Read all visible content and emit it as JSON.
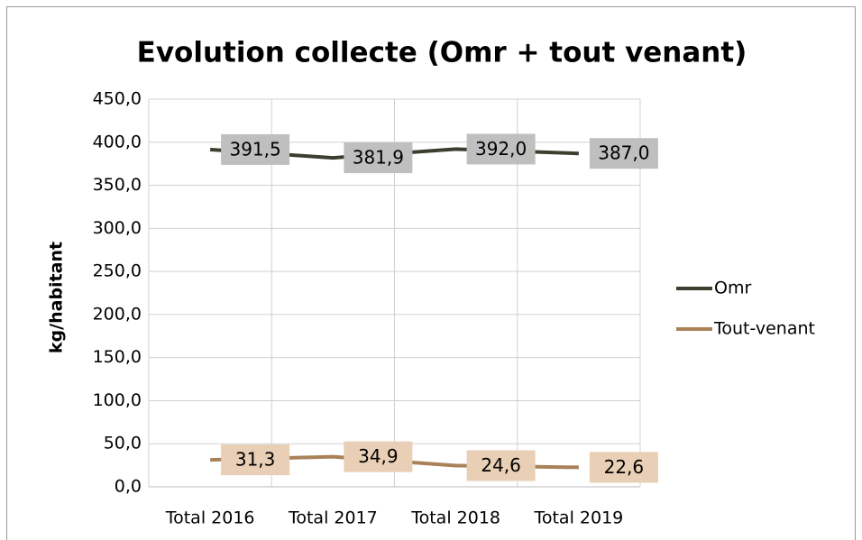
{
  "chart_data": {
    "type": "line",
    "title": "Evolution collecte (Omr + tout venant)",
    "y_label": "kg/habitant",
    "categories": [
      "Total 2016",
      "Total 2017",
      "Total 2018",
      "Total 2019"
    ],
    "series": [
      {
        "name": "Omr",
        "color": "#3b3f2f",
        "label_color": "#bfbfbf",
        "values": [
          391.5,
          381.9,
          392.0,
          387.0
        ],
        "value_labels": [
          "391,5",
          "381,9",
          "392,0",
          "387,0"
        ]
      },
      {
        "name": "Tout-venant",
        "color": "#a98259",
        "label_color": "#e8cfb5",
        "values": [
          31.3,
          34.9,
          24.6,
          22.6
        ],
        "value_labels": [
          "31,3",
          "34,9",
          "24,6",
          "22,6"
        ]
      }
    ],
    "ylim": [
      0,
      450
    ],
    "yticks": [
      {
        "value": 0,
        "label": "0,0"
      },
      {
        "value": 50,
        "label": "50,0"
      },
      {
        "value": 100,
        "label": "100,0"
      },
      {
        "value": 150,
        "label": "150,0"
      },
      {
        "value": 200,
        "label": "200,0"
      },
      {
        "value": 250,
        "label": "250,0"
      },
      {
        "value": 300,
        "label": "300,0"
      },
      {
        "value": 350,
        "label": "350,0"
      },
      {
        "value": 400,
        "label": "400,0"
      },
      {
        "value": 450,
        "label": "450,0"
      }
    ],
    "grid": true,
    "legend": "right"
  }
}
